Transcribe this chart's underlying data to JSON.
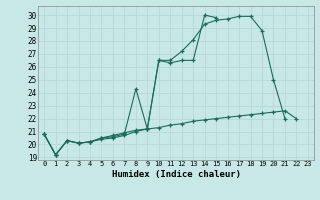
{
  "bg_color": "#c8e8e8",
  "grid_color": "#b8d8d8",
  "line_color": "#1a6b5a",
  "xlabel": "Humidex (Indice chaleur)",
  "xlim": [
    -0.5,
    23.5
  ],
  "ylim": [
    18.8,
    30.7
  ],
  "yticks": [
    19,
    20,
    21,
    22,
    23,
    24,
    25,
    26,
    27,
    28,
    29,
    30
  ],
  "xticks": [
    0,
    1,
    2,
    3,
    4,
    5,
    6,
    7,
    8,
    9,
    10,
    11,
    12,
    13,
    14,
    15,
    16,
    17,
    18,
    19,
    20,
    21,
    22,
    23
  ],
  "line_top_x": [
    0,
    1,
    2,
    3,
    4,
    5,
    6,
    7,
    8,
    9,
    10,
    11,
    12,
    13,
    14,
    15,
    16,
    17,
    18,
    19,
    20,
    21
  ],
  "line_top_y": [
    20.8,
    19.2,
    20.3,
    20.1,
    20.2,
    20.4,
    20.5,
    20.7,
    21.0,
    21.2,
    26.5,
    26.5,
    27.2,
    28.1,
    29.3,
    29.6,
    29.7,
    29.9,
    29.9,
    28.8,
    25.0,
    22.0
  ],
  "line_mid_x": [
    0,
    1,
    2,
    3,
    4,
    5,
    6,
    7,
    8,
    9,
    10,
    11,
    12,
    13,
    14,
    15
  ],
  "line_mid_y": [
    20.8,
    19.2,
    20.3,
    20.1,
    20.2,
    20.5,
    20.6,
    20.8,
    24.3,
    21.2,
    26.5,
    26.3,
    26.5,
    26.5,
    30.0,
    29.8
  ],
  "line_bot_x": [
    0,
    1,
    2,
    3,
    4,
    5,
    6,
    7,
    8,
    9,
    10,
    11,
    12,
    13,
    14,
    15,
    16,
    17,
    18,
    19,
    20,
    21,
    22
  ],
  "line_bot_y": [
    20.8,
    19.2,
    20.3,
    20.1,
    20.2,
    20.5,
    20.7,
    20.9,
    21.1,
    21.2,
    21.3,
    21.5,
    21.6,
    21.8,
    21.9,
    22.0,
    22.1,
    22.2,
    22.3,
    22.4,
    22.5,
    22.6,
    22.0
  ]
}
